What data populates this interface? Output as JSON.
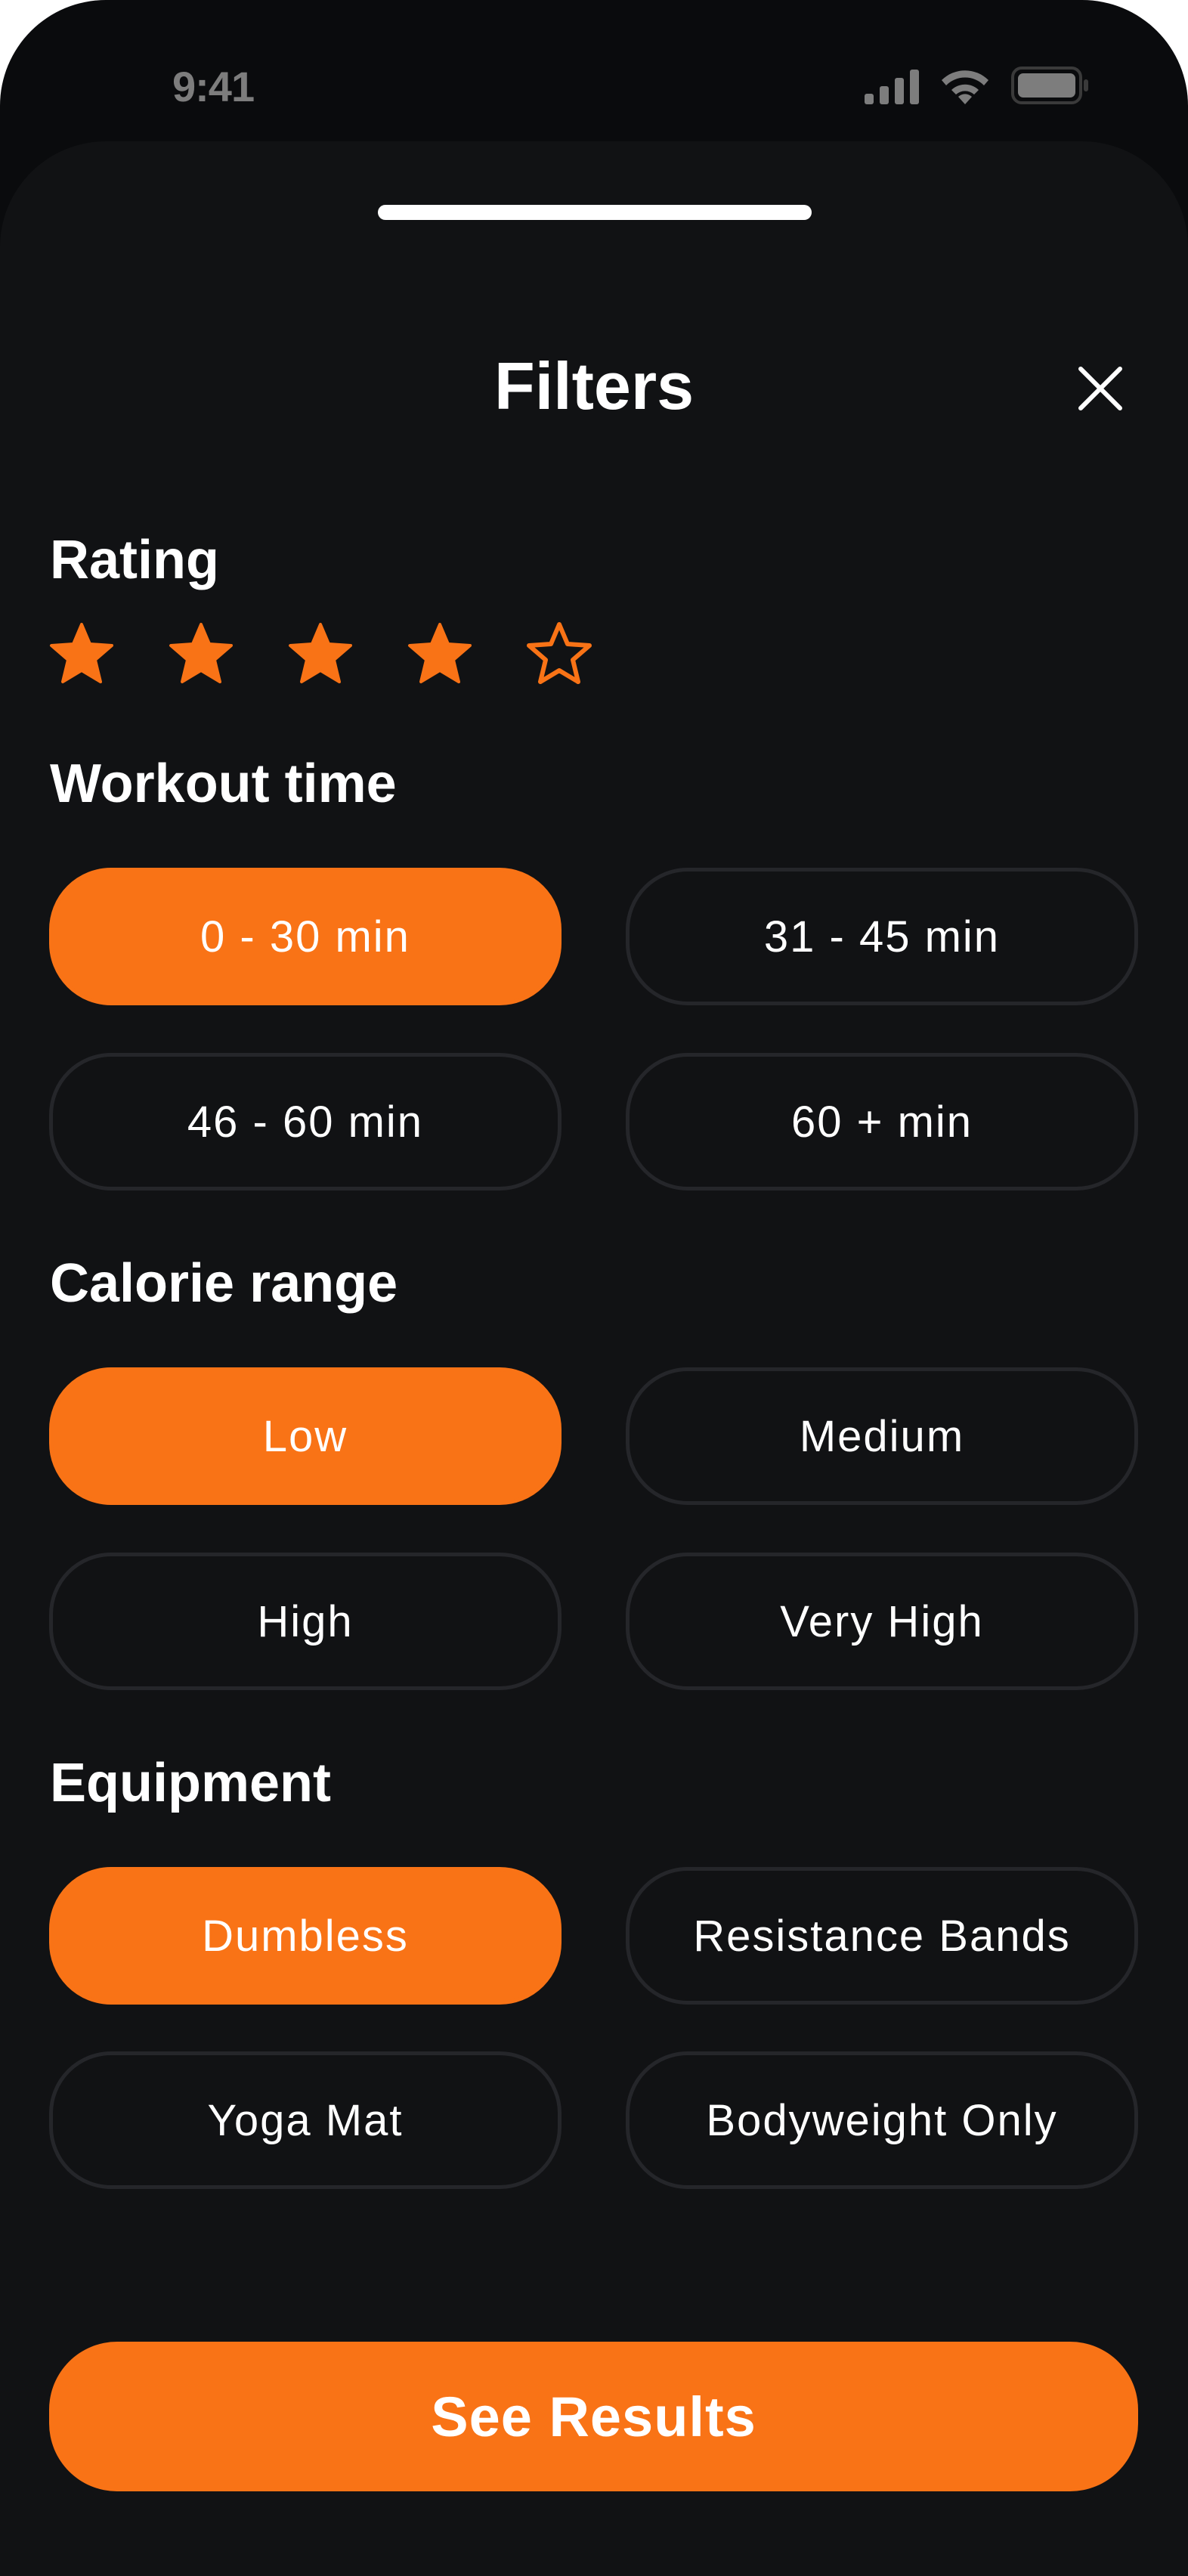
{
  "status_bar": {
    "time": "9:41",
    "icons": [
      "cellular-signal-icon",
      "wifi-icon",
      "battery-icon"
    ]
  },
  "sheet": {
    "title": "Filters",
    "close_icon": "close-icon"
  },
  "rating": {
    "label": "Rating",
    "value": 4,
    "max": 5
  },
  "workout_time": {
    "label": "Workout time",
    "options": [
      {
        "label": "0 - 30 min",
        "selected": true
      },
      {
        "label": "31 - 45 min",
        "selected": false
      },
      {
        "label": "46 - 60 min",
        "selected": false
      },
      {
        "label": "60 + min",
        "selected": false
      }
    ]
  },
  "calorie_range": {
    "label": "Calorie range",
    "options": [
      {
        "label": "Low",
        "selected": true
      },
      {
        "label": "Medium",
        "selected": false
      },
      {
        "label": "High",
        "selected": false
      },
      {
        "label": "Very High",
        "selected": false
      }
    ]
  },
  "equipment": {
    "label": "Equipment",
    "options": [
      {
        "label": "Dumbless",
        "selected": true
      },
      {
        "label": "Resistance Bands",
        "selected": false
      },
      {
        "label": "Yoga Mat",
        "selected": false
      },
      {
        "label": "Bodyweight Only",
        "selected": false
      }
    ]
  },
  "cta": {
    "label": "See Results"
  },
  "colors": {
    "accent": "#f97316",
    "background": "#111214",
    "chip_border": "#25262a",
    "text": "#ffffff"
  }
}
